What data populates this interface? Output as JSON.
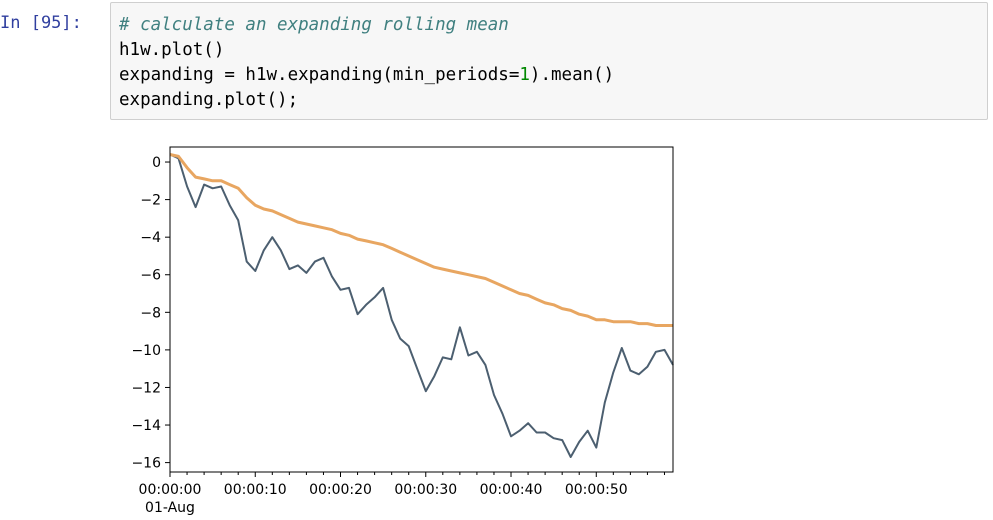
{
  "cell": {
    "prompt": "In [95]:",
    "code_lines": [
      {
        "text": "# calculate an expanding rolling mean",
        "kind": "comment"
      },
      {
        "text": "h1w.plot()",
        "kind": "code"
      },
      {
        "text": "expanding = h1w.expanding(min_periods=1).mean()",
        "kind": "code"
      },
      {
        "text": "expanding.plot();",
        "kind": "code"
      }
    ]
  },
  "chart_data": {
    "type": "line",
    "xlim": [
      0,
      59
    ],
    "ylim": [
      -16.5,
      0.8
    ],
    "yticks": [
      0,
      -2,
      -4,
      -6,
      -8,
      -10,
      -12,
      -14,
      -16
    ],
    "xticks": [
      {
        "value": 0,
        "label": "00:00:00",
        "sublabel": "01-Aug"
      },
      {
        "value": 10,
        "label": "00:00:10"
      },
      {
        "value": 20,
        "label": "00:00:20"
      },
      {
        "value": 30,
        "label": "00:00:30"
      },
      {
        "value": 40,
        "label": "00:00:40"
      },
      {
        "value": 50,
        "label": "00:00:50"
      }
    ],
    "grid": false,
    "series": [
      {
        "color": "#4c5f70",
        "x": [
          0,
          1,
          2,
          3,
          4,
          5,
          6,
          7,
          8,
          9,
          10,
          11,
          12,
          13,
          14,
          15,
          16,
          17,
          18,
          19,
          20,
          21,
          22,
          23,
          24,
          25,
          26,
          27,
          28,
          29,
          30,
          31,
          32,
          33,
          34,
          35,
          36,
          37,
          38,
          39,
          40,
          41,
          42,
          43,
          44,
          45,
          46,
          47,
          48,
          49,
          50,
          51,
          52,
          53,
          54,
          55,
          56,
          57,
          58,
          59
        ],
        "y": [
          0.4,
          0.2,
          -1.3,
          -2.4,
          -1.2,
          -1.4,
          -1.3,
          -2.3,
          -3.1,
          -5.3,
          -5.8,
          -4.7,
          -4.0,
          -4.7,
          -5.7,
          -5.5,
          -5.9,
          -5.3,
          -5.1,
          -6.1,
          -6.8,
          -6.7,
          -8.1,
          -7.6,
          -7.2,
          -6.7,
          -8.4,
          -9.4,
          -9.8,
          -11.0,
          -12.2,
          -11.4,
          -10.4,
          -10.5,
          -8.8,
          -10.3,
          -10.1,
          -10.8,
          -12.4,
          -13.4,
          -14.6,
          -14.3,
          -13.9,
          -14.4,
          -14.4,
          -14.7,
          -14.8,
          -15.7,
          -14.9,
          -14.3,
          -15.2,
          -12.8,
          -11.2,
          -9.9,
          -11.1,
          -11.3,
          -10.9,
          -10.1,
          -10.0,
          -10.8
        ]
      },
      {
        "color": "#e8a661",
        "x": [
          0,
          1,
          2,
          3,
          4,
          5,
          6,
          7,
          8,
          9,
          10,
          11,
          12,
          13,
          14,
          15,
          16,
          17,
          18,
          19,
          20,
          21,
          22,
          23,
          24,
          25,
          26,
          27,
          28,
          29,
          30,
          31,
          32,
          33,
          34,
          35,
          36,
          37,
          38,
          39,
          40,
          41,
          42,
          43,
          44,
          45,
          46,
          47,
          48,
          49,
          50,
          51,
          52,
          53,
          54,
          55,
          56,
          57,
          58,
          59
        ],
        "y": [
          0.4,
          0.3,
          -0.3,
          -0.8,
          -0.9,
          -1.0,
          -1.0,
          -1.2,
          -1.4,
          -1.9,
          -2.3,
          -2.5,
          -2.6,
          -2.8,
          -3.0,
          -3.2,
          -3.3,
          -3.4,
          -3.5,
          -3.6,
          -3.8,
          -3.9,
          -4.1,
          -4.2,
          -4.3,
          -4.4,
          -4.6,
          -4.8,
          -5.0,
          -5.2,
          -5.4,
          -5.6,
          -5.7,
          -5.8,
          -5.9,
          -6.0,
          -6.1,
          -6.2,
          -6.4,
          -6.6,
          -6.8,
          -7.0,
          -7.1,
          -7.3,
          -7.5,
          -7.6,
          -7.8,
          -7.9,
          -8.1,
          -8.2,
          -8.4,
          -8.4,
          -8.5,
          -8.5,
          -8.5,
          -8.6,
          -8.6,
          -8.7,
          -8.7,
          -8.7
        ]
      }
    ]
  }
}
